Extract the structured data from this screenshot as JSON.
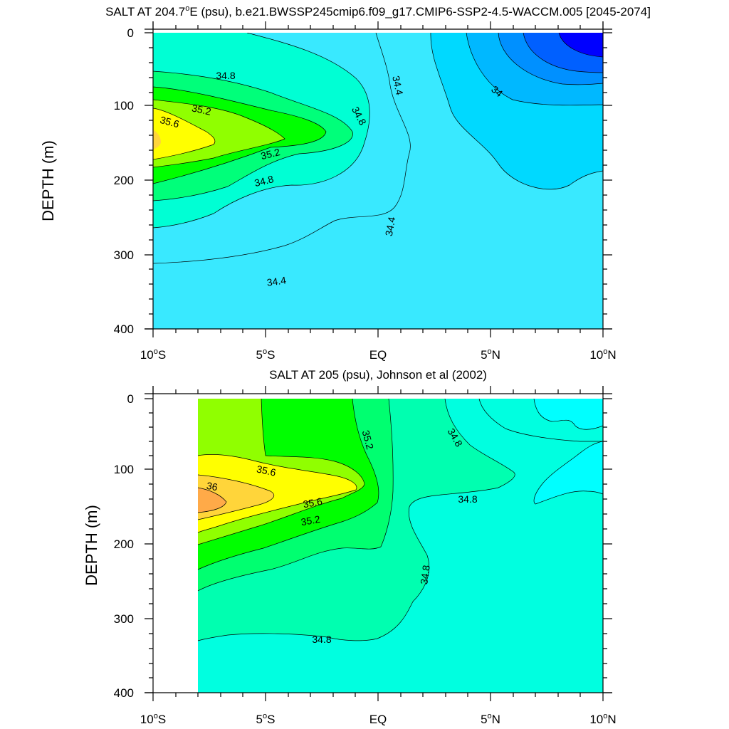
{
  "chart_data": [
    {
      "type": "contour",
      "title": "SALT AT 204.7°E (psu), b.e21.BWSSP245cmip6.f09_g17.CMIP6-SSP2-4.5-WACCM.005 [2045-2074]",
      "title_parts": {
        "pre": "SALT AT 204.7",
        "sup": "o",
        "post": "E (psu), b.e21.BWSSP245cmip6.f09_g17.CMIP6-SSP2-4.5-WACCM.005 [2045-2074]"
      },
      "ylabel": "DEPTH (m)",
      "xlim": [
        -10,
        10
      ],
      "ylim": [
        0,
        400
      ],
      "y_inverted": true,
      "x_ticks": [
        {
          "value": -10,
          "num": "10",
          "sup": "o",
          "hem": "S"
        },
        {
          "value": -5,
          "num": "5",
          "sup": "o",
          "hem": "S"
        },
        {
          "value": 0,
          "num": "EQ",
          "sup": "",
          "hem": ""
        },
        {
          "value": 5,
          "num": "5",
          "sup": "o",
          "hem": "N"
        },
        {
          "value": 10,
          "num": "10",
          "sup": "o",
          "hem": "N"
        }
      ],
      "y_ticks": [
        "0",
        "100",
        "200",
        "300",
        "400"
      ],
      "contour_labels": [
        "34.8",
        "35.2",
        "35.6",
        "35.2",
        "34.8",
        "34.8",
        "34.4",
        "34.4",
        "34.4",
        "34"
      ],
      "colors": {
        "bg": "#39e9ff",
        "teal": "#00ffd4",
        "green_light": "#00ff7a",
        "green": "#00ff00",
        "lime": "#90ff00",
        "yellow": "#ffff00",
        "sky": "#00d9ff",
        "azure1": "#00b8ff",
        "azure2": "#0090ff",
        "blue": "#0060ff",
        "deep_blue": "#0000ff"
      }
    },
    {
      "type": "contour",
      "title": "SALT AT 205 (psu), Johnson et al (2002)",
      "ylabel": "DEPTH (m)",
      "xlim": [
        -10,
        10
      ],
      "ylim": [
        0,
        400
      ],
      "y_inverted": true,
      "x_ticks": [
        {
          "value": -10,
          "num": "10",
          "sup": "o",
          "hem": "S"
        },
        {
          "value": -5,
          "num": "5",
          "sup": "o",
          "hem": "S"
        },
        {
          "value": 0,
          "num": "EQ",
          "sup": "",
          "hem": ""
        },
        {
          "value": 5,
          "num": "5",
          "sup": "o",
          "hem": "N"
        },
        {
          "value": 10,
          "num": "10",
          "sup": "o",
          "hem": "N"
        }
      ],
      "y_ticks": [
        "0",
        "100",
        "200",
        "300",
        "400"
      ],
      "contour_labels": [
        "35.6",
        "36",
        "35.6",
        "35.2",
        "35.2",
        "34.8",
        "34.8",
        "34.8",
        "34.8"
      ],
      "missing_data_region": "10°S to 8°S",
      "colors": {
        "bg": "#00ffe0",
        "teal": "#00ffb0",
        "green_light": "#00ff70",
        "green": "#00ff00",
        "lime": "#90ff00",
        "yellow": "#ffff00",
        "gold": "#ffd53a",
        "orange": "#ffaa48",
        "cyan": "#00ffff",
        "missing": "#ffffff"
      }
    }
  ]
}
